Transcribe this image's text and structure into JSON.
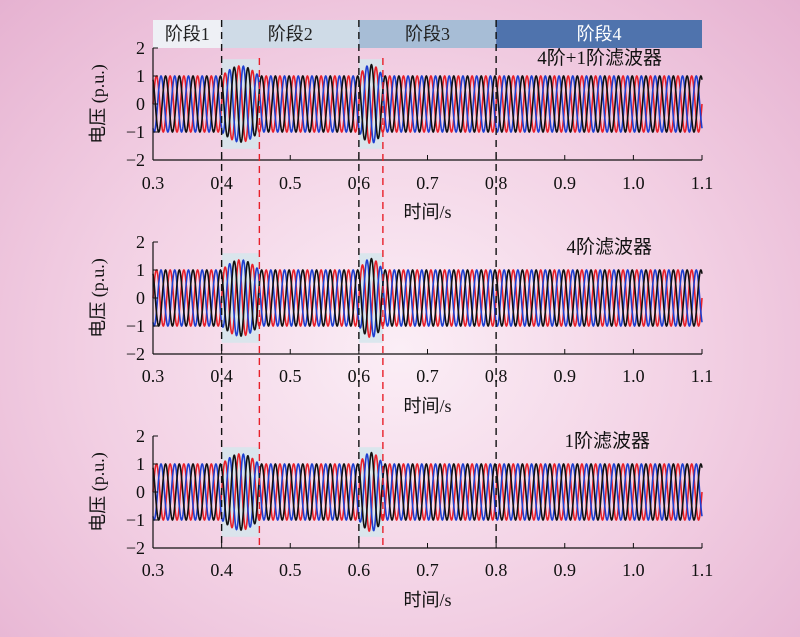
{
  "stages": [
    {
      "label": "阶段1",
      "from": 0.3,
      "to": 0.4,
      "color": "#eef0f5",
      "text_color": "#222222"
    },
    {
      "label": "阶段2",
      "from": 0.4,
      "to": 0.6,
      "color": "#cfdbe7",
      "text_color": "#222222"
    },
    {
      "label": "阶段3",
      "from": 0.6,
      "to": 0.8,
      "color": "#a7bdd6",
      "text_color": "#222222"
    },
    {
      "label": "阶段4",
      "from": 0.8,
      "to": 1.1,
      "color": "#4f73ad",
      "text_color": "#ffffff"
    }
  ],
  "chart_data": [
    {
      "type": "line",
      "title": "4阶+1阶滤波器",
      "xlabel": "时间/s",
      "ylabel": "电压 (p.u.)",
      "xlim": [
        0.3,
        1.1
      ],
      "ylim": [
        -2,
        2
      ],
      "xticks": [
        "0.3",
        "0.4",
        "0.5",
        "0.6",
        "0.7",
        "0.8",
        "0.9",
        "1.0",
        "1.1"
      ],
      "yticks": [
        "2",
        "1",
        "0",
        "−1",
        "−2"
      ],
      "series_colors": [
        "#e8202a",
        "#1e3fd0",
        "#111111"
      ],
      "signal": "three-phase sinusoid, amplitude ≈1 p.u., 50 Hz",
      "transients": [
        {
          "t": [
            0.4,
            0.455
          ],
          "peak": 1.4
        },
        {
          "t": [
            0.6,
            0.635
          ],
          "peak": 1.45
        }
      ],
      "dashed_lines": [
        {
          "x": 0.4,
          "color": "#111111"
        },
        {
          "x": 0.455,
          "color": "#e8202a"
        },
        {
          "x": 0.6,
          "color": "#111111"
        },
        {
          "x": 0.635,
          "color": "#e8202a"
        },
        {
          "x": 0.8,
          "color": "#111111"
        }
      ]
    },
    {
      "type": "line",
      "title": "4阶滤波器",
      "xlabel": "时间/s",
      "ylabel": "电压 (p.u.)",
      "xlim": [
        0.3,
        1.1
      ],
      "ylim": [
        -2,
        2
      ],
      "xticks": [
        "0.3",
        "0.4",
        "0.5",
        "0.6",
        "0.7",
        "0.8",
        "0.9",
        "1.0",
        "1.1"
      ],
      "yticks": [
        "2",
        "1",
        "0",
        "−1",
        "−2"
      ],
      "series_colors": [
        "#e8202a",
        "#1e3fd0",
        "#111111"
      ],
      "signal": "three-phase sinusoid, amplitude ≈1 p.u., 50 Hz",
      "transients": [
        {
          "t": [
            0.4,
            0.455
          ],
          "peak": 1.4
        },
        {
          "t": [
            0.6,
            0.635
          ],
          "peak": 1.45
        }
      ],
      "dashed_lines": [
        {
          "x": 0.4,
          "color": "#111111"
        },
        {
          "x": 0.455,
          "color": "#e8202a"
        },
        {
          "x": 0.6,
          "color": "#111111"
        },
        {
          "x": 0.635,
          "color": "#e8202a"
        },
        {
          "x": 0.8,
          "color": "#111111"
        }
      ]
    },
    {
      "type": "line",
      "title": "1阶滤波器",
      "xlabel": "时间/s",
      "ylabel": "电压 (p.u.)",
      "xlim": [
        0.3,
        1.1
      ],
      "ylim": [
        -2,
        2
      ],
      "xticks": [
        "0.3",
        "0.4",
        "0.5",
        "0.6",
        "0.7",
        "0.8",
        "0.9",
        "1.0",
        "1.1"
      ],
      "yticks": [
        "2",
        "1",
        "0",
        "−1",
        "−2"
      ],
      "series_colors": [
        "#e8202a",
        "#1e3fd0",
        "#111111"
      ],
      "signal": "three-phase sinusoid, amplitude ≈1 p.u., 50 Hz",
      "transients": [
        {
          "t": [
            0.4,
            0.455
          ],
          "peak": 1.4
        },
        {
          "t": [
            0.6,
            0.635
          ],
          "peak": 1.45
        }
      ],
      "dashed_lines": [
        {
          "x": 0.4,
          "color": "#111111"
        },
        {
          "x": 0.455,
          "color": "#e8202a"
        },
        {
          "x": 0.6,
          "color": "#111111"
        },
        {
          "x": 0.635,
          "color": "#e8202a"
        },
        {
          "x": 0.8,
          "color": "#111111"
        }
      ]
    }
  ]
}
